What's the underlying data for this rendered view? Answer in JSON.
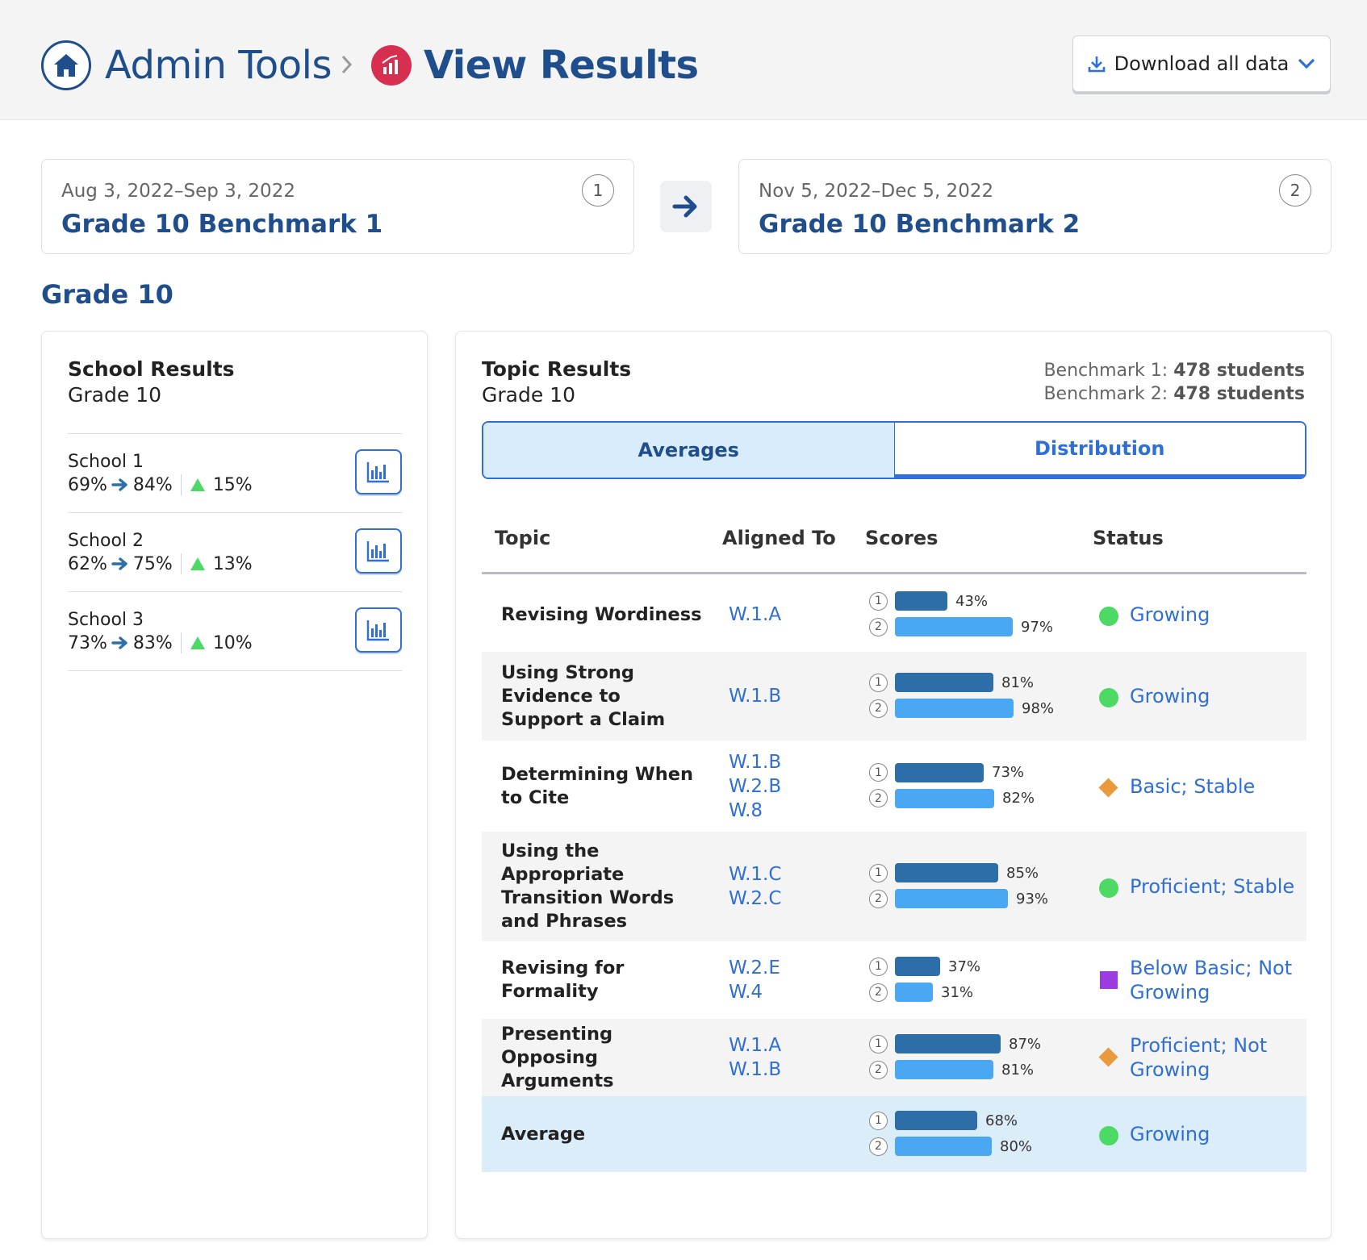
{
  "header": {
    "crumb_admin": "Admin Tools",
    "crumb_view": "View Results",
    "download_label": "Download all data"
  },
  "benchmarks": [
    {
      "date": "Aug 3, 2022–Sep 3, 2022",
      "name": "Grade 10 Benchmark 1",
      "num": "1"
    },
    {
      "date": "Nov 5, 2022–Dec 5, 2022",
      "name": "Grade 10 Benchmark 2",
      "num": "2"
    }
  ],
  "grade_title": "Grade 10",
  "school_results": {
    "title": "School Results",
    "subtitle": "Grade 10",
    "schools": [
      {
        "name": "School 1",
        "from": "69%",
        "to": "84%",
        "change": "15%"
      },
      {
        "name": "School 2",
        "from": "62%",
        "to": "75%",
        "change": "13%"
      },
      {
        "name": "School 3",
        "from": "73%",
        "to": "83%",
        "change": "10%"
      }
    ]
  },
  "topic_results": {
    "title": "Topic Results",
    "subtitle": "Grade 10",
    "count1_label": "Benchmark 1:",
    "count1_value": "478 students",
    "count2_label": "Benchmark 2:",
    "count2_value": "478 students",
    "tabs": [
      "Averages",
      "Distribution"
    ],
    "columns": [
      "Topic",
      "Aligned To",
      "Scores",
      "Status"
    ],
    "rows": [
      {
        "topic": "Revising Wordiness",
        "aligned": [
          "W.1.A"
        ],
        "s1": 43,
        "s1_label": "43%",
        "s2": 97,
        "s2_label": "97%",
        "status": "Growing",
        "status_icon": "green-dot"
      },
      {
        "topic": "Using Strong Evidence to Support a Claim",
        "aligned": [
          "W.1.B"
        ],
        "s1": 81,
        "s1_label": "81%",
        "s2": 98,
        "s2_label": "98%",
        "status": "Growing",
        "status_icon": "green-dot"
      },
      {
        "topic": "Determining When to Cite",
        "aligned": [
          "W.1.B",
          "W.2.B",
          "W.8"
        ],
        "s1": 73,
        "s1_label": "73%",
        "s2": 82,
        "s2_label": "82%",
        "status": "Basic; Stable",
        "status_icon": "orange-diamond"
      },
      {
        "topic": "Using the Appropriate Transition Words and Phrases",
        "aligned": [
          "W.1.C",
          "W.2.C"
        ],
        "s1": 85,
        "s1_label": "85%",
        "s2": 93,
        "s2_label": "93%",
        "status": "Proficient; Stable",
        "status_icon": "green-dot"
      },
      {
        "topic": "Revising for Formality",
        "aligned": [
          "W.2.E",
          "W.4"
        ],
        "s1": 37,
        "s1_label": "37%",
        "s2": 31,
        "s2_label": "31%",
        "status": "Below Basic; Not Growing",
        "status_icon": "purple-square"
      },
      {
        "topic": "Presenting Opposing Arguments",
        "aligned": [
          "W.1.A",
          "W.1.B"
        ],
        "s1": 87,
        "s1_label": "87%",
        "s2": 81,
        "s2_label": "81%",
        "status": "Proficient; Not Growing",
        "status_icon": "orange-diamond"
      },
      {
        "topic": "Average",
        "aligned": [],
        "s1": 68,
        "s1_label": "68%",
        "s2": 80,
        "s2_label": "80%",
        "status": "Growing",
        "status_icon": "green-dot"
      }
    ]
  },
  "colors": {
    "brand_blue": "#1f4e8c",
    "link_blue": "#2f6fd6",
    "bar_benchmark1": "#2e6ea8",
    "bar_benchmark2": "#4aa8f2",
    "growing": "#4cd964",
    "stable": "#e89a3c",
    "not_growing": "#9b3ce0",
    "results_icon": "#d72f4f"
  }
}
